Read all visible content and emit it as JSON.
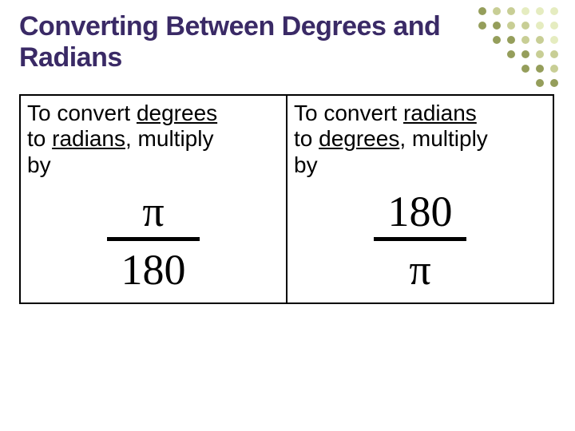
{
  "title_color": "#3a2a66",
  "background": "#ffffff",
  "title": "Converting Between Degrees and Radians",
  "dots": {
    "colors": [
      "#b5c94a",
      "#9aa63e",
      "#7a8632"
    ],
    "opacity": [
      0.35,
      0.55,
      0.8
    ],
    "grid": 6,
    "radius": 5,
    "spacing": 18
  },
  "table": {
    "left": {
      "line1_pre": "To convert ",
      "line1_em": "degrees",
      "line2_pre": "to ",
      "line2_em": "radians",
      "line2_post": ", multiply",
      "line3": "by",
      "frac_num": "π",
      "frac_den": "180"
    },
    "right": {
      "line1_pre": "To convert ",
      "line1_em": "radians",
      "line2_pre": "to ",
      "line2_em": "degrees",
      "line2_post": ", multiply",
      "line3": "by",
      "frac_num": "180",
      "frac_den": "π"
    }
  }
}
